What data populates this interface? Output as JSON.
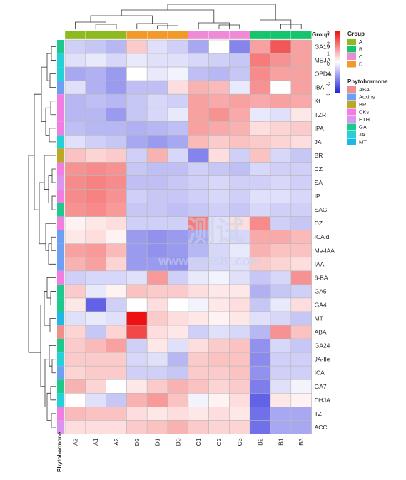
{
  "chart_data": {
    "type": "heatmap",
    "columns": [
      "A3",
      "A1",
      "A2",
      "D2",
      "D1",
      "D3",
      "C1",
      "C2",
      "C3",
      "B2",
      "B1",
      "B3"
    ],
    "column_groups": [
      "A",
      "A",
      "A",
      "D",
      "D",
      "D",
      "C",
      "C",
      "C",
      "B",
      "B",
      "B"
    ],
    "rows": [
      {
        "name": "GA19",
        "class": "GA",
        "values": [
          -0.5,
          -0.6,
          -0.8,
          0.5,
          -0.3,
          -0.5,
          -1.0,
          0.0,
          -1.5,
          1.0,
          2.0,
          1.0
        ]
      },
      {
        "name": "MEJA",
        "class": "JA",
        "values": [
          -0.3,
          -0.2,
          -0.4,
          -0.2,
          -0.3,
          -0.3,
          -0.4,
          -0.5,
          -0.6,
          1.5,
          1.2,
          1.0
        ]
      },
      {
        "name": "OPDA",
        "class": "JA",
        "values": [
          -1.0,
          -0.9,
          -1.2,
          0.0,
          -0.2,
          -0.1,
          -0.7,
          -0.8,
          -0.6,
          1.3,
          1.0,
          1.0
        ]
      },
      {
        "name": "IBA",
        "class": "Auxins",
        "values": [
          -0.3,
          -0.9,
          -1.2,
          -0.7,
          -0.7,
          0.3,
          0.8,
          0.7,
          -0.2,
          1.2,
          0.0,
          1.0
        ]
      },
      {
        "name": "Kt",
        "class": "CKs",
        "values": [
          -0.8,
          -0.7,
          -0.8,
          -0.6,
          -0.4,
          -0.5,
          1.0,
          0.9,
          1.0,
          0.9,
          1.0,
          0.9
        ]
      },
      {
        "name": "TZR",
        "class": "CKs",
        "values": [
          -0.8,
          -0.8,
          -1.2,
          -0.6,
          -0.4,
          -0.2,
          1.0,
          1.2,
          0.9,
          -0.2,
          -0.3,
          0.2
        ]
      },
      {
        "name": "IPA",
        "class": "CKs",
        "values": [
          -0.7,
          -0.8,
          -0.8,
          -0.9,
          -0.8,
          -0.7,
          1.0,
          0.9,
          0.8,
          0.3,
          0.4,
          0.5
        ]
      },
      {
        "name": "JA",
        "class": "JA",
        "values": [
          -0.3,
          -0.5,
          -0.6,
          -1.0,
          -1.2,
          -1.0,
          0.7,
          0.5,
          0.6,
          0.5,
          0.4,
          0.3
        ]
      },
      {
        "name": "BR",
        "class": "BR",
        "values": [
          0.6,
          0.4,
          0.5,
          -0.5,
          0.8,
          -0.4,
          -1.5,
          0.3,
          -0.5,
          0.6,
          -0.4,
          -0.6
        ]
      },
      {
        "name": "CZ",
        "class": "CKs",
        "values": [
          1.2,
          1.3,
          1.2,
          -0.6,
          -0.7,
          -0.7,
          -0.5,
          -0.6,
          -0.7,
          -0.4,
          -0.5,
          -0.5
        ]
      },
      {
        "name": "SA",
        "class": "ETH",
        "values": [
          1.3,
          1.4,
          1.3,
          -0.7,
          -0.7,
          -0.6,
          -0.5,
          -0.4,
          -0.5,
          -0.5,
          -0.4,
          -0.5
        ]
      },
      {
        "name": "IP",
        "class": "CKs",
        "values": [
          1.3,
          1.4,
          1.2,
          -0.5,
          -0.6,
          -0.6,
          -0.5,
          -0.4,
          -0.5,
          -0.3,
          -0.3,
          -0.4
        ]
      },
      {
        "name": "SAG",
        "class": "GA",
        "values": [
          1.2,
          1.3,
          1.1,
          -0.6,
          -0.6,
          -0.7,
          -0.6,
          -0.5,
          -0.6,
          -0.4,
          -0.5,
          -0.5
        ]
      },
      {
        "name": "DZ",
        "class": "CKs",
        "values": [
          0.1,
          0.2,
          0.3,
          -0.5,
          -0.5,
          -0.5,
          1.5,
          -0.3,
          0.3,
          1.3,
          -0.5,
          -0.6
        ]
      },
      {
        "name": "ICAld",
        "class": "Auxins",
        "values": [
          0.2,
          0.3,
          0.1,
          -1.2,
          -1.3,
          -1.2,
          -1.0,
          -0.3,
          -0.4,
          0.9,
          0.9,
          0.7
        ]
      },
      {
        "name": "Me-IAA",
        "class": "Auxins",
        "values": [
          1.0,
          1.1,
          0.7,
          -1.2,
          -1.3,
          -1.2,
          -0.8,
          -0.4,
          -0.2,
          0.8,
          0.6,
          0.6
        ]
      },
      {
        "name": "IAA",
        "class": "Auxins",
        "values": [
          0.8,
          1.0,
          0.4,
          -1.2,
          -1.2,
          -1.3,
          -0.5,
          -0.4,
          -0.3,
          0.5,
          0.4,
          0.3
        ]
      },
      {
        "name": "6-BA",
        "class": "CKs",
        "values": [
          -0.5,
          -0.4,
          -0.4,
          -0.3,
          1.1,
          -0.5,
          -0.2,
          -0.1,
          -0.3,
          -0.6,
          -0.4,
          1.2
        ]
      },
      {
        "name": "GA5",
        "class": "GA",
        "values": [
          0.5,
          -0.2,
          0.1,
          0.6,
          0.5,
          0.5,
          0.3,
          0.2,
          0.2,
          -0.9,
          -0.6,
          -0.5
        ]
      },
      {
        "name": "GA4",
        "class": "GA",
        "values": [
          0.2,
          -2.0,
          -0.5,
          0.0,
          0.3,
          0.0,
          -0.1,
          0.2,
          0.3,
          -0.6,
          -0.2,
          0.3
        ]
      },
      {
        "name": "MT",
        "class": "MT",
        "values": [
          -0.3,
          -0.2,
          -0.3,
          3.0,
          0.5,
          0.3,
          0.2,
          0.1,
          0.2,
          -0.3,
          -0.4,
          -0.6
        ]
      },
      {
        "name": "ABA",
        "class": "ABA",
        "values": [
          0.4,
          -0.6,
          0.4,
          2.2,
          0.3,
          0.2,
          -0.5,
          -0.3,
          -0.4,
          -0.8,
          1.2,
          0.6
        ]
      },
      {
        "name": "GA24",
        "class": "GA",
        "values": [
          0.5,
          0.7,
          1.0,
          -0.5,
          0.2,
          -0.3,
          0.3,
          0.5,
          0.6,
          -1.3,
          -0.4,
          -0.6
        ]
      },
      {
        "name": "JA-Ile",
        "class": "JA",
        "values": [
          0.5,
          0.5,
          0.5,
          -0.4,
          -0.3,
          -0.8,
          0.5,
          0.6,
          0.6,
          -1.4,
          -0.5,
          -0.5
        ]
      },
      {
        "name": "ICA",
        "class": "Auxins",
        "values": [
          0.4,
          0.5,
          0.5,
          -0.5,
          -0.5,
          -0.6,
          0.5,
          0.5,
          0.6,
          -1.3,
          -0.5,
          -0.5
        ]
      },
      {
        "name": "GA7",
        "class": "GA",
        "values": [
          0.8,
          0.4,
          0.0,
          0.2,
          0.5,
          0.8,
          0.6,
          0.4,
          0.5,
          -1.6,
          -0.3,
          -0.1
        ]
      },
      {
        "name": "DHJA",
        "class": "JA",
        "values": [
          0.0,
          -0.3,
          -0.6,
          0.8,
          1.1,
          0.6,
          -0.1,
          0.1,
          0.3,
          -2.0,
          0.2,
          0.1
        ]
      },
      {
        "name": "TZ",
        "class": "CKs",
        "values": [
          0.7,
          0.6,
          0.6,
          0.3,
          0.2,
          0.3,
          0.2,
          0.3,
          0.2,
          -1.8,
          -1.0,
          -1.0
        ]
      },
      {
        "name": "ACC",
        "class": "ETH",
        "values": [
          0.3,
          0.3,
          0.3,
          0.5,
          0.6,
          0.8,
          0.5,
          0.4,
          0.4,
          -1.8,
          -1.0,
          -1.0
        ]
      }
    ],
    "color_scale": {
      "min": -3,
      "max": 3,
      "low": "#2222dd",
      "mid": "#ffffff",
      "high": "#ee1111",
      "ticks": [
        "3",
        "2",
        "1",
        "0",
        "-1",
        "-2",
        "-3"
      ]
    },
    "group_annotation_label": "Group",
    "row_annotation_label": "Phytohormone",
    "legend": {
      "group_title": "Group",
      "groups": [
        {
          "name": "A",
          "color": "#8dba21"
        },
        {
          "name": "B",
          "color": "#16c46b"
        },
        {
          "name": "C",
          "color": "#ef8ad7"
        },
        {
          "name": "D",
          "color": "#f19a2c"
        }
      ],
      "class_title": "Phytohormone",
      "classes": [
        {
          "name": "ABA",
          "color": "#f08d8d"
        },
        {
          "name": "Auxins",
          "color": "#6f9ff2"
        },
        {
          "name": "BR",
          "color": "#bca822"
        },
        {
          "name": "CKs",
          "color": "#f27ee2"
        },
        {
          "name": "ETH",
          "color": "#dd93f0"
        },
        {
          "name": "GA",
          "color": "#1fc98e"
        },
        {
          "name": "JA",
          "color": "#27cfd6"
        },
        {
          "name": "MT",
          "color": "#1eb8e6"
        }
      ]
    }
  },
  "watermark": {
    "brand": "测试",
    "url": "www.eceshi.com",
    "color": "#c9d3ea"
  }
}
